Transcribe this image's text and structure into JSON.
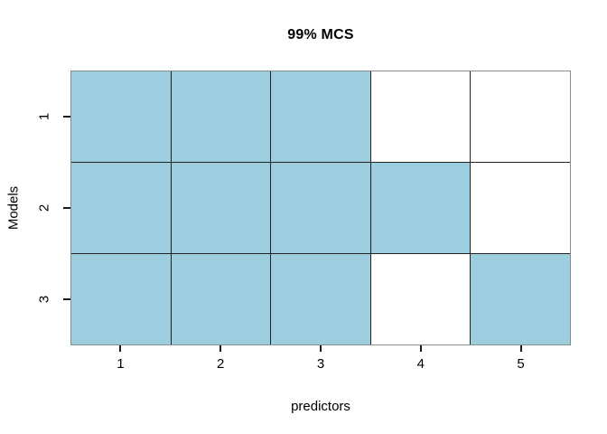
{
  "chart_data": {
    "type": "heatmap",
    "title": "99% MCS",
    "xlabel": "predictors",
    "ylabel": "Models",
    "x_tick_labels": [
      "1",
      "2",
      "3",
      "4",
      "5"
    ],
    "y_tick_labels": [
      "1",
      "2",
      "3"
    ],
    "rows": [
      "Model 1",
      "Model 2",
      "Model 3"
    ],
    "columns": [
      "predictor 1",
      "predictor 2",
      "predictor 3",
      "predictor 4",
      "predictor 5"
    ],
    "matrix": [
      [
        1,
        1,
        1,
        0,
        0
      ],
      [
        1,
        1,
        1,
        1,
        0
      ],
      [
        1,
        1,
        1,
        0,
        1
      ]
    ],
    "cell_color_on": "#9DCEDF",
    "cell_color_off": "#FFFFFF",
    "grid_line_color": "#222222",
    "box_color": "#8a8a8a",
    "legend": "none",
    "grid": true
  }
}
